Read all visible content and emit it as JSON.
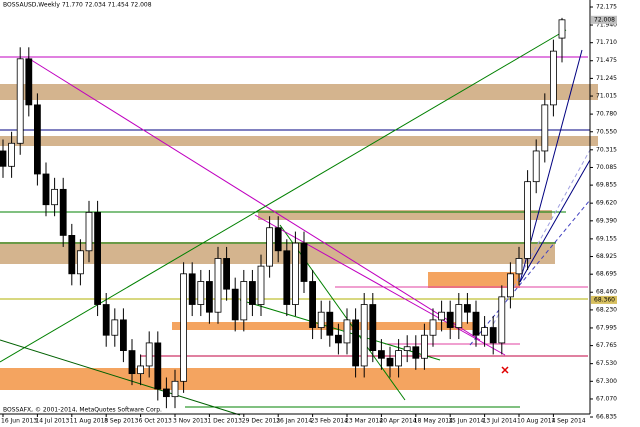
{
  "chart_data": {
    "type": "candlestick",
    "title": "BOSSAUSD,Weekly  71.770 72.034 71.454 72.008",
    "footer": "BOSSAFX, © 2001-2014, MetaQuotes Software Corp.",
    "categories": [
      "16 Jun 2013",
      null,
      null,
      null,
      "14 Jul 2013",
      null,
      null,
      null,
      "11 Aug 2013",
      null,
      null,
      null,
      "8 Sep 2013",
      null,
      null,
      null,
      "6 Oct 2013",
      null,
      null,
      null,
      "3 Nov 2013",
      null,
      null,
      null,
      "1 Dec 2013",
      null,
      null,
      null,
      "29 Dec 2013",
      null,
      null,
      null,
      "26 Jan 2014",
      null,
      null,
      null,
      "23 Feb 2014",
      null,
      null,
      null,
      "23 Mar 2014",
      null,
      null,
      null,
      "20 Apr 2014",
      null,
      null,
      null,
      "18 May 2014",
      null,
      null,
      null,
      "15 Jun 2014",
      null,
      null,
      null,
      "13 Jul 2014",
      null,
      null,
      null,
      "10 Aug 2014",
      null,
      null,
      null,
      "7 Sep 2014",
      null
    ],
    "open": [
      70.3,
      70.1,
      70.4,
      71.5,
      70.9,
      70.0,
      69.6,
      69.8,
      69.2,
      68.7,
      69.0,
      69.5,
      68.3,
      67.9,
      68.1,
      67.7,
      67.4,
      67.5,
      67.8,
      67.2,
      67.1,
      67.3,
      68.7,
      68.3,
      68.6,
      68.2,
      68.9,
      68.5,
      68.1,
      68.6,
      68.3,
      68.8,
      69.3,
      69.0,
      68.3,
      69.1,
      68.6,
      68.0,
      68.2,
      67.9,
      67.8,
      68.1,
      67.5,
      68.3,
      67.7,
      67.6,
      67.5,
      67.7,
      67.75,
      67.6,
      67.9,
      68.1,
      68.2,
      68.0,
      68.3,
      68.2,
      67.9,
      68.0,
      67.8,
      68.4,
      68.7,
      68.9,
      69.9,
      70.3,
      70.9,
      71.77
    ],
    "high": [
      70.45,
      70.55,
      71.65,
      71.65,
      71.05,
      70.15,
      69.95,
      69.95,
      69.35,
      69.15,
      69.65,
      69.65,
      68.45,
      68.25,
      68.25,
      67.85,
      67.65,
      67.95,
      67.95,
      67.35,
      67.45,
      68.85,
      68.85,
      68.75,
      68.75,
      69.05,
      69.05,
      68.65,
      68.75,
      68.75,
      68.95,
      69.45,
      69.45,
      69.15,
      69.25,
      69.25,
      68.75,
      68.35,
      68.35,
      68.05,
      68.25,
      68.25,
      68.45,
      68.45,
      67.85,
      67.75,
      67.85,
      67.9,
      67.9,
      68.05,
      68.25,
      68.35,
      68.35,
      68.45,
      68.45,
      68.35,
      68.15,
      68.15,
      68.55,
      68.85,
      69.05,
      70.05,
      70.45,
      71.05,
      71.75,
      72.034
    ],
    "low": [
      69.95,
      69.95,
      70.25,
      70.75,
      69.85,
      69.45,
      69.45,
      69.05,
      68.55,
      68.55,
      68.85,
      68.15,
      67.75,
      67.75,
      67.55,
      67.25,
      67.25,
      67.35,
      67.05,
      66.95,
      66.95,
      67.15,
      68.15,
      68.15,
      68.05,
      68.05,
      68.35,
      67.95,
      67.95,
      68.15,
      68.15,
      68.65,
      68.85,
      68.15,
      68.15,
      68.45,
      67.85,
      67.85,
      67.75,
      67.65,
      67.65,
      67.35,
      67.35,
      67.55,
      67.45,
      67.35,
      67.35,
      67.55,
      67.45,
      67.45,
      67.75,
      67.95,
      67.85,
      67.85,
      68.05,
      67.75,
      67.75,
      67.65,
      67.65,
      68.25,
      68.55,
      68.75,
      69.75,
      70.15,
      70.75,
      71.454
    ],
    "close": [
      70.1,
      70.4,
      71.5,
      70.9,
      70.0,
      69.6,
      69.8,
      69.2,
      68.7,
      69.0,
      69.5,
      68.3,
      67.9,
      68.1,
      67.7,
      67.4,
      67.5,
      67.8,
      67.2,
      67.1,
      67.3,
      68.7,
      68.3,
      68.6,
      68.2,
      68.9,
      68.5,
      68.1,
      68.6,
      68.3,
      68.8,
      69.3,
      69.0,
      68.3,
      69.1,
      68.6,
      68.0,
      68.2,
      67.9,
      67.8,
      68.1,
      67.5,
      68.3,
      67.7,
      67.6,
      67.5,
      67.7,
      67.75,
      67.6,
      67.9,
      68.1,
      68.2,
      68.0,
      68.3,
      68.2,
      67.9,
      68.0,
      67.8,
      68.4,
      68.7,
      68.9,
      69.9,
      70.3,
      70.9,
      71.6,
      72.008
    ],
    "ylim": [
      66.77,
      72.266
    ],
    "yticks": [
      72.175,
      {
        "value": 71.94,
        "label": "71.940"
      },
      {
        "value": 71.71,
        "label": "71.710"
      },
      71.475,
      71.245,
      71.015,
      {
        "value": 70.78,
        "label": "70.780"
      },
      {
        "value": 70.55,
        "label": "70.550"
      },
      70.315,
      70.085,
      69.855,
      {
        "value": 69.62,
        "label": "69.620"
      },
      {
        "value": 69.39,
        "label": "69.390"
      },
      69.155,
      68.925,
      68.695,
      {
        "value": 68.46,
        "label": "68.460"
      },
      {
        "value": 68.23,
        "label": "68.230"
      },
      67.995,
      67.765,
      {
        "value": 67.53,
        "label": "67.530"
      },
      {
        "value": 67.3,
        "label": "67.300"
      },
      {
        "value": 67.07,
        "label": "67.070"
      },
      66.835
    ],
    "price_markers": [
      {
        "value": 72.008,
        "label": "72.008",
        "color": "#c0c0c0"
      },
      {
        "value": 68.36,
        "label": "68.360",
        "color": "#d8c060"
      }
    ],
    "up_color": "#ffffff",
    "down_color": "#000000"
  }
}
